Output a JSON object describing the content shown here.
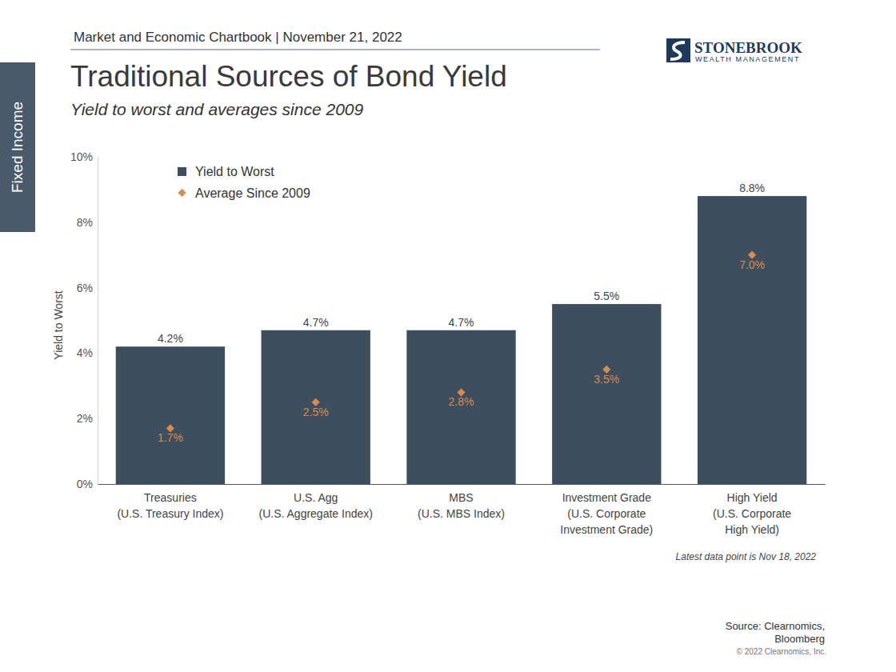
{
  "page": {
    "header": "Market and Economic Chartbook | November 21, 2022",
    "logo": {
      "name": "STONEBROOK",
      "tagline": "WEALTH MANAGEMENT"
    },
    "section": "Fixed Income",
    "note": "Latest data point is Nov 18, 2022",
    "source": "Source: Clearnomics,\nBloomberg",
    "copyright": "© 2022 Clearnomics, Inc."
  },
  "chart_data": {
    "type": "bar",
    "title": "Traditional Sources of Bond Yield",
    "subtitle": "Yield to worst and averages since 2009",
    "ylabel": "Yield to Worst",
    "categories": [
      "Treasuries\n(U.S. Treasury Index)",
      "U.S. Agg\n(U.S. Aggregate Index)",
      "MBS\n(U.S. MBS Index)",
      "Investment Grade\n(U.S. Corporate\nInvestment Grade)",
      "High Yield\n(U.S. Corporate\nHigh Yield)"
    ],
    "series": [
      {
        "name": "Yield to Worst",
        "type": "bar",
        "color": "#3d4e5e",
        "values": [
          4.2,
          4.7,
          4.7,
          5.5,
          8.8
        ],
        "value_labels": [
          "4.2%",
          "4.7%",
          "4.7%",
          "5.5%",
          "8.8%"
        ]
      },
      {
        "name": "Average Since 2009",
        "type": "scatter",
        "marker": "diamond",
        "color": "#d98b4b",
        "values": [
          1.7,
          2.5,
          2.8,
          3.5,
          7.0
        ],
        "value_labels": [
          "1.7%",
          "2.5%",
          "2.8%",
          "3.5%",
          "7.0%"
        ]
      }
    ],
    "ylim": [
      0,
      10
    ],
    "yticks": [
      {
        "value": 0,
        "label": "0%"
      },
      {
        "value": 2,
        "label": "2%"
      },
      {
        "value": 4,
        "label": "4%"
      },
      {
        "value": 6,
        "label": "6%"
      },
      {
        "value": 8,
        "label": "8%"
      },
      {
        "value": 10,
        "label": "10%"
      }
    ],
    "grid": false,
    "legend": "upper left",
    "data_labels": true
  }
}
